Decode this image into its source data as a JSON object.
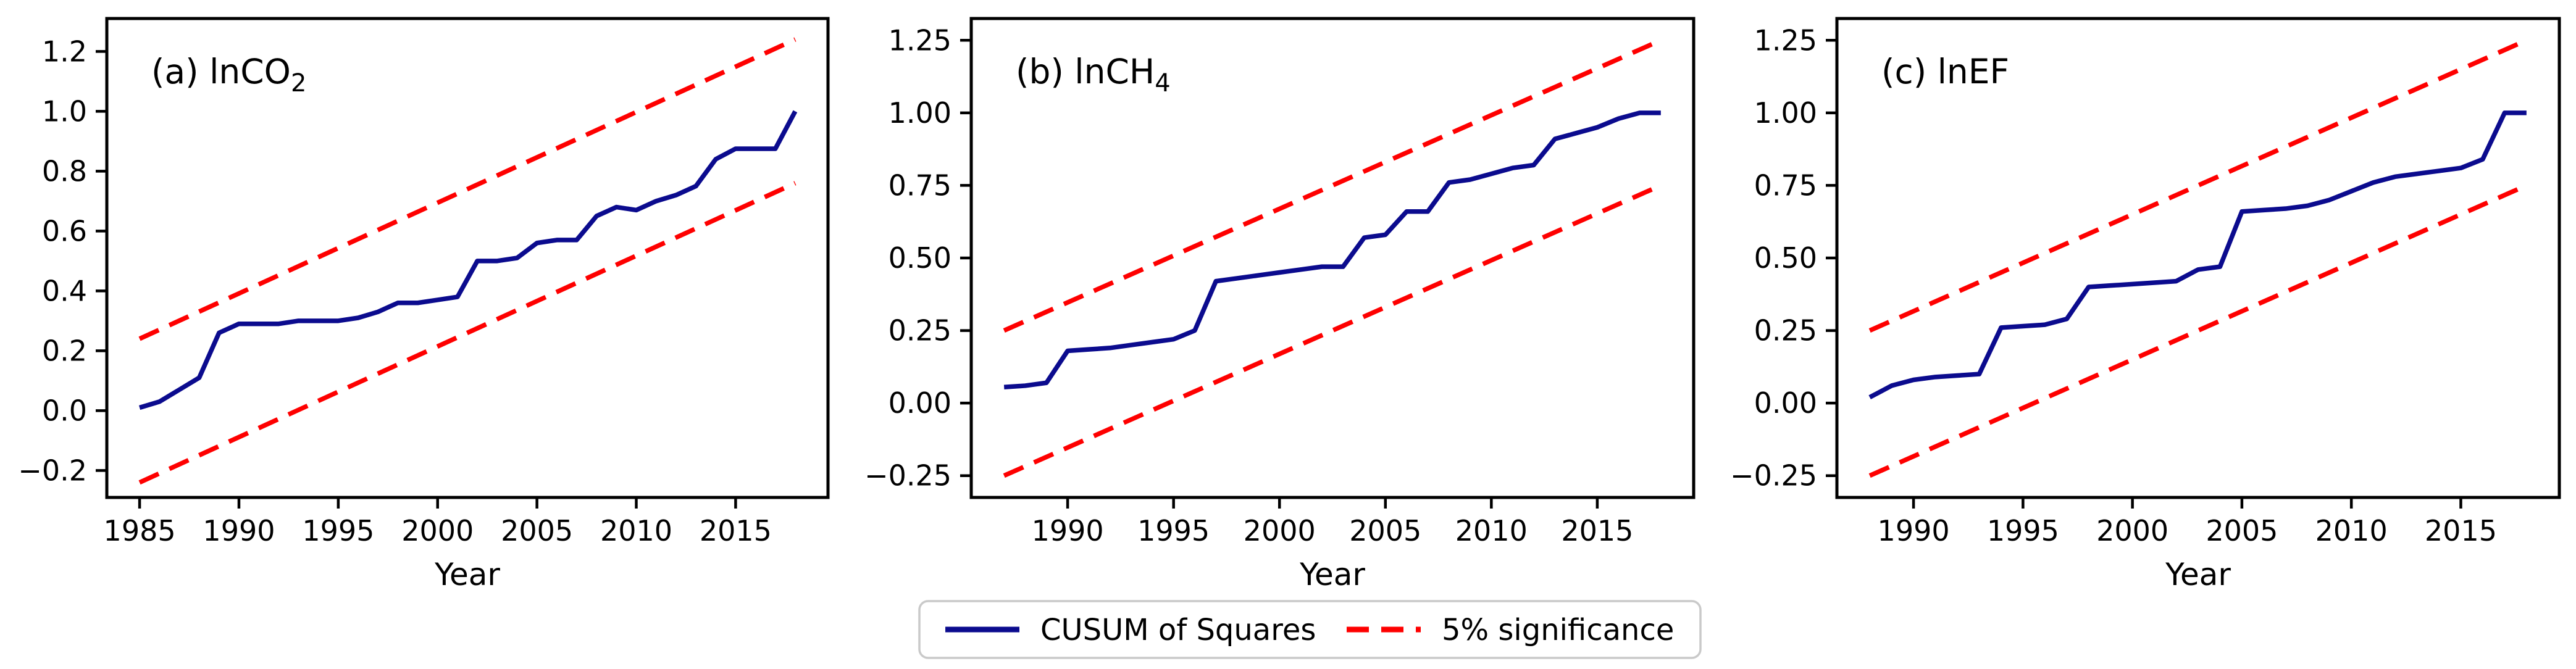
{
  "figure": {
    "kind": "CUSUM of Squares stability test figure, three subplots",
    "background": "#ffffff"
  },
  "colors": {
    "cusum": "#0b0b8e",
    "significance": "#fe0000",
    "text": "#000000",
    "spine": "#000000",
    "legend_border": "#c9c9c9",
    "legend_fill": "#ffffff"
  },
  "legend": {
    "position": "lower center",
    "entries": [
      {
        "label": "CUSUM of Squares",
        "style": "solid",
        "color_key": "cusum"
      },
      {
        "label": "5% significance",
        "style": "dashed",
        "color_key": "significance"
      }
    ]
  },
  "chart_data": [
    {
      "type": "line",
      "panel_label": "(a) lnCO",
      "panel_label_sub": "2",
      "xlabel": "Year",
      "x": [
        1985,
        1986,
        1987,
        1988,
        1989,
        1990,
        1991,
        1992,
        1993,
        1994,
        1995,
        1996,
        1997,
        1998,
        1999,
        2000,
        2001,
        2002,
        2003,
        2004,
        2005,
        2006,
        2007,
        2008,
        2009,
        2010,
        2011,
        2012,
        2013,
        2014,
        2015,
        2016,
        2017,
        2018
      ],
      "series": [
        {
          "name": "CUSUM of Squares",
          "values": [
            0.01,
            0.03,
            0.07,
            0.11,
            0.26,
            0.29,
            0.29,
            0.29,
            0.3,
            0.3,
            0.3,
            0.31,
            0.33,
            0.36,
            0.36,
            0.37,
            0.38,
            0.5,
            0.5,
            0.51,
            0.56,
            0.57,
            0.57,
            0.65,
            0.68,
            0.67,
            0.7,
            0.72,
            0.75,
            0.84,
            0.875,
            0.875,
            0.875,
            1.0
          ]
        },
        {
          "name": "5% significance upper",
          "from": [
            1985,
            0.24
          ],
          "to": [
            2018,
            1.24
          ]
        },
        {
          "name": "5% significance lower",
          "from": [
            1985,
            -0.24
          ],
          "to": [
            2018,
            0.76
          ]
        }
      ],
      "xlim": [
        1983.35,
        2019.65
      ],
      "ylim": [
        -0.29,
        1.31
      ],
      "xticks": [
        1985,
        1990,
        1995,
        2000,
        2005,
        2010,
        2015
      ],
      "yticks": [
        -0.2,
        0.0,
        0.2,
        0.4,
        0.6,
        0.8,
        1.0,
        1.2
      ],
      "ytick_decimals": 1,
      "grid": false
    },
    {
      "type": "line",
      "panel_label": "(b) lnCH",
      "panel_label_sub": "4",
      "xlabel": "Year",
      "x": [
        1987,
        1988,
        1989,
        1990,
        1991,
        1992,
        1993,
        1994,
        1995,
        1996,
        1997,
        1998,
        1999,
        2000,
        2001,
        2002,
        2003,
        2004,
        2005,
        2006,
        2007,
        2008,
        2009,
        2010,
        2011,
        2012,
        2013,
        2014,
        2015,
        2016,
        2017,
        2018
      ],
      "series": [
        {
          "name": "CUSUM of Squares",
          "values": [
            0.055,
            0.06,
            0.07,
            0.18,
            0.185,
            0.19,
            0.2,
            0.21,
            0.22,
            0.25,
            0.42,
            0.43,
            0.44,
            0.45,
            0.46,
            0.47,
            0.47,
            0.57,
            0.58,
            0.66,
            0.66,
            0.76,
            0.77,
            0.79,
            0.81,
            0.82,
            0.91,
            0.93,
            0.95,
            0.98,
            1.0,
            1.0
          ]
        },
        {
          "name": "5% significance upper",
          "from": [
            1987,
            0.25
          ],
          "to": [
            2018,
            1.25
          ]
        },
        {
          "name": "5% significance lower",
          "from": [
            1987,
            -0.25
          ],
          "to": [
            2018,
            0.75
          ]
        }
      ],
      "xlim": [
        1985.45,
        2019.55
      ],
      "ylim": [
        -0.325,
        1.325
      ],
      "xticks": [
        1990,
        1995,
        2000,
        2005,
        2010,
        2015
      ],
      "yticks": [
        -0.25,
        0.0,
        0.25,
        0.5,
        0.75,
        1.0,
        1.25
      ],
      "ytick_decimals": 2,
      "grid": false
    },
    {
      "type": "line",
      "panel_label": "(c) lnEF",
      "panel_label_sub": "",
      "xlabel": "Year",
      "x": [
        1988,
        1989,
        1990,
        1991,
        1992,
        1993,
        1994,
        1995,
        1996,
        1997,
        1998,
        1999,
        2000,
        2001,
        2002,
        2003,
        2004,
        2005,
        2006,
        2007,
        2008,
        2009,
        2010,
        2011,
        2012,
        2013,
        2014,
        2015,
        2016,
        2017,
        2018
      ],
      "series": [
        {
          "name": "CUSUM of Squares",
          "values": [
            0.02,
            0.06,
            0.08,
            0.09,
            0.095,
            0.1,
            0.26,
            0.265,
            0.27,
            0.29,
            0.4,
            0.405,
            0.41,
            0.415,
            0.42,
            0.46,
            0.47,
            0.66,
            0.665,
            0.67,
            0.68,
            0.7,
            0.73,
            0.76,
            0.78,
            0.79,
            0.8,
            0.81,
            0.84,
            1.0,
            1.0
          ]
        },
        {
          "name": "5% significance upper",
          "from": [
            1988,
            0.25
          ],
          "to": [
            2018,
            1.25
          ]
        },
        {
          "name": "5% significance lower",
          "from": [
            1988,
            -0.25
          ],
          "to": [
            2018,
            0.75
          ]
        }
      ],
      "xlim": [
        1986.5,
        2019.5
      ],
      "ylim": [
        -0.325,
        1.325
      ],
      "xticks": [
        1990,
        1995,
        2000,
        2005,
        2010,
        2015
      ],
      "yticks": [
        -0.25,
        0.0,
        0.25,
        0.5,
        0.75,
        1.0,
        1.25
      ],
      "ytick_decimals": 2,
      "grid": false
    }
  ]
}
